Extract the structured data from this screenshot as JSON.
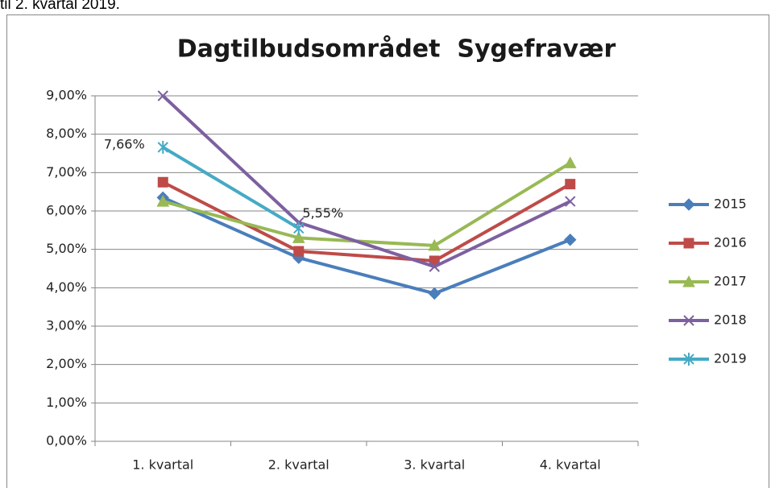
{
  "caption": "til 2. kvartal 2019.",
  "chart_data": {
    "type": "line",
    "title": "Dagtilbudsområdet  Sygefravær",
    "categories": [
      "1. kvartal",
      "2. kvartal",
      "3. kvartal",
      "4. kvartal"
    ],
    "series": [
      {
        "name": "2015",
        "color": "#4a7ebb",
        "marker": "diamond",
        "values": [
          6.35,
          4.78,
          3.85,
          5.25
        ]
      },
      {
        "name": "2016",
        "color": "#be4b48",
        "marker": "square",
        "values": [
          6.75,
          4.95,
          4.7,
          6.7
        ]
      },
      {
        "name": "2017",
        "color": "#98b954",
        "marker": "triangle",
        "values": [
          6.25,
          5.3,
          5.1,
          7.25
        ]
      },
      {
        "name": "2018",
        "color": "#7d60a0",
        "marker": "x",
        "values": [
          9.0,
          5.7,
          4.55,
          6.25
        ]
      },
      {
        "name": "2019",
        "color": "#46aac5",
        "marker": "star",
        "values": [
          7.66,
          5.55,
          null,
          null
        ],
        "value_labels": [
          "7,66%",
          "5,55%",
          null,
          null
        ]
      }
    ],
    "ylim": [
      0,
      9
    ],
    "yticks": [
      {
        "value": 0,
        "label": "0,00%"
      },
      {
        "value": 1,
        "label": "1,00%"
      },
      {
        "value": 2,
        "label": "2,00%"
      },
      {
        "value": 3,
        "label": "3,00%"
      },
      {
        "value": 4,
        "label": "4,00%"
      },
      {
        "value": 5,
        "label": "5,00%"
      },
      {
        "value": 6,
        "label": "6,00%"
      },
      {
        "value": 7,
        "label": "7,00%"
      },
      {
        "value": 8,
        "label": "8,00%"
      },
      {
        "value": 9,
        "label": "9,00%"
      }
    ],
    "grid": true,
    "legend": "right"
  }
}
